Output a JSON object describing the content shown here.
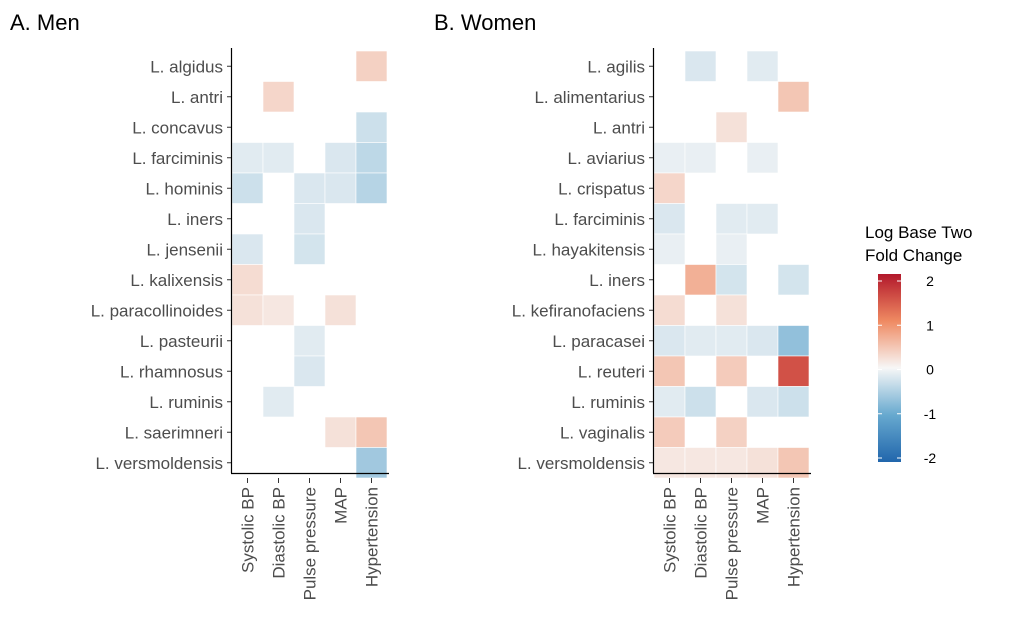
{
  "chart_data": [
    {
      "type": "heatmap",
      "title": "A. Men",
      "x": [
        "Systolic BP",
        "Diastolic BP",
        "Pulse pressure",
        "MAP",
        "Hypertension"
      ],
      "y": [
        "L. algidus",
        "L. antri",
        "L. concavus",
        "L. farciminis",
        "L. hominis",
        "L. iners",
        "L. jensenii",
        "L. kalixensis",
        "L. paracollinoides",
        "L. pasteurii",
        "L. rhamnosus",
        "L. ruminis",
        "L. saerimneri",
        "L. versmoldensis"
      ],
      "values": [
        [
          null,
          null,
          null,
          null,
          0.35
        ],
        [
          null,
          0.3,
          null,
          null,
          null
        ],
        [
          null,
          null,
          null,
          null,
          -0.3
        ],
        [
          -0.15,
          -0.15,
          null,
          -0.2,
          -0.4
        ],
        [
          -0.3,
          null,
          -0.2,
          -0.2,
          -0.45
        ],
        [
          null,
          null,
          -0.2,
          null,
          null
        ],
        [
          -0.2,
          null,
          -0.25,
          null,
          null
        ],
        [
          0.25,
          null,
          null,
          null,
          null
        ],
        [
          0.2,
          0.15,
          null,
          0.2,
          null
        ],
        [
          null,
          null,
          -0.15,
          null,
          null
        ],
        [
          null,
          null,
          -0.2,
          null,
          null
        ],
        [
          null,
          -0.15,
          null,
          null,
          null
        ],
        [
          null,
          null,
          null,
          0.2,
          0.45
        ],
        [
          null,
          null,
          null,
          null,
          -0.6
        ]
      ]
    },
    {
      "type": "heatmap",
      "title": "B. Women",
      "x": [
        "Systolic BP",
        "Diastolic BP",
        "Pulse pressure",
        "MAP",
        "Hypertension"
      ],
      "y": [
        "L. agilis",
        "L. alimentarius",
        "L. antri",
        "L. aviarius",
        "L. crispatus",
        "L. farciminis",
        "L. hayakitensis",
        "L. iners",
        "L. kefiranofaciens",
        "L. paracasei",
        "L. reuteri",
        "L. ruminis",
        "L. vaginalis",
        "L. versmoldensis"
      ],
      "values": [
        [
          null,
          -0.2,
          null,
          -0.15,
          null
        ],
        [
          null,
          null,
          null,
          null,
          0.45
        ],
        [
          null,
          null,
          0.2,
          null,
          null
        ],
        [
          -0.1,
          -0.1,
          null,
          -0.1,
          null
        ],
        [
          0.3,
          null,
          null,
          null,
          null
        ],
        [
          -0.2,
          null,
          -0.15,
          -0.15,
          null
        ],
        [
          -0.1,
          null,
          -0.1,
          null,
          null
        ],
        [
          null,
          0.65,
          -0.25,
          null,
          -0.25
        ],
        [
          0.25,
          null,
          0.2,
          null,
          null
        ],
        [
          -0.2,
          -0.15,
          -0.15,
          -0.2,
          -0.7
        ],
        [
          0.45,
          null,
          0.4,
          null,
          1.5
        ],
        [
          -0.15,
          -0.3,
          null,
          -0.2,
          -0.3
        ],
        [
          0.4,
          null,
          0.35,
          null,
          null
        ],
        [
          0.15,
          0.15,
          0.15,
          0.2,
          0.45
        ]
      ]
    }
  ],
  "legend": {
    "title_line1": "Log Base Two",
    "title_line2": "Fold Change",
    "range": [
      -2,
      2
    ],
    "ticks": [
      "2",
      "1",
      "0",
      "-1",
      "-2"
    ],
    "colors": [
      "#b2182b",
      "#ef8a62",
      "#f7f7f7",
      "#67a9cf",
      "#2166ac"
    ]
  }
}
